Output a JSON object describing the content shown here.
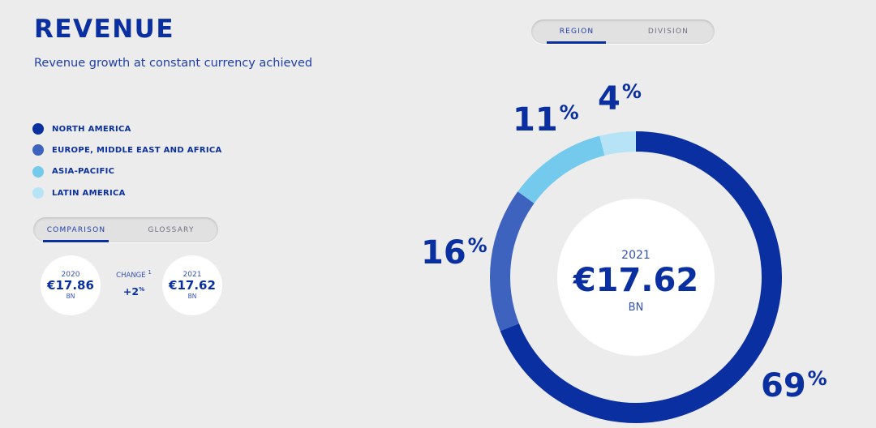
{
  "header": {
    "title": "REVENUE",
    "subtitle": "Revenue growth at constant currency achieved"
  },
  "view_toggle": {
    "options": [
      "REGION",
      "DIVISION"
    ],
    "active": "REGION"
  },
  "legend": [
    {
      "label": "NORTH AMERICA",
      "color": "#0a2fa0"
    },
    {
      "label": "EUROPE, MIDDLE EAST AND AFRICA",
      "color": "#3e63bf"
    },
    {
      "label": "ASIA-PACIFIC",
      "color": "#74caec"
    },
    {
      "label": "LATIN AMERICA",
      "color": "#b6e4f6"
    }
  ],
  "comparison_toggle": {
    "options": [
      "COMPARISON",
      "GLOSSARY"
    ],
    "active": "COMPARISON"
  },
  "comparison": {
    "prev": {
      "year": "2020",
      "value": "€17.86",
      "unit": "BN"
    },
    "change": {
      "label": "CHANGE",
      "footnote": "1",
      "value": "+2",
      "unit": "%"
    },
    "curr": {
      "year": "2021",
      "value": "€17.62",
      "unit": "BN"
    }
  },
  "chart_data": {
    "type": "pie",
    "style": "donut",
    "center": {
      "year": "2021",
      "value": "€17.62",
      "unit": "BN"
    },
    "categories": [
      "NORTH AMERICA",
      "EUROPE, MIDDLE EAST AND AFRICA",
      "ASIA-PACIFIC",
      "LATIN AMERICA"
    ],
    "values": [
      69,
      16,
      11,
      4
    ],
    "value_labels": [
      "69",
      "16",
      "11",
      "4"
    ],
    "unit": "%",
    "colors": [
      "#0a2fa0",
      "#3e63bf",
      "#74caec",
      "#b6e4f6"
    ]
  }
}
